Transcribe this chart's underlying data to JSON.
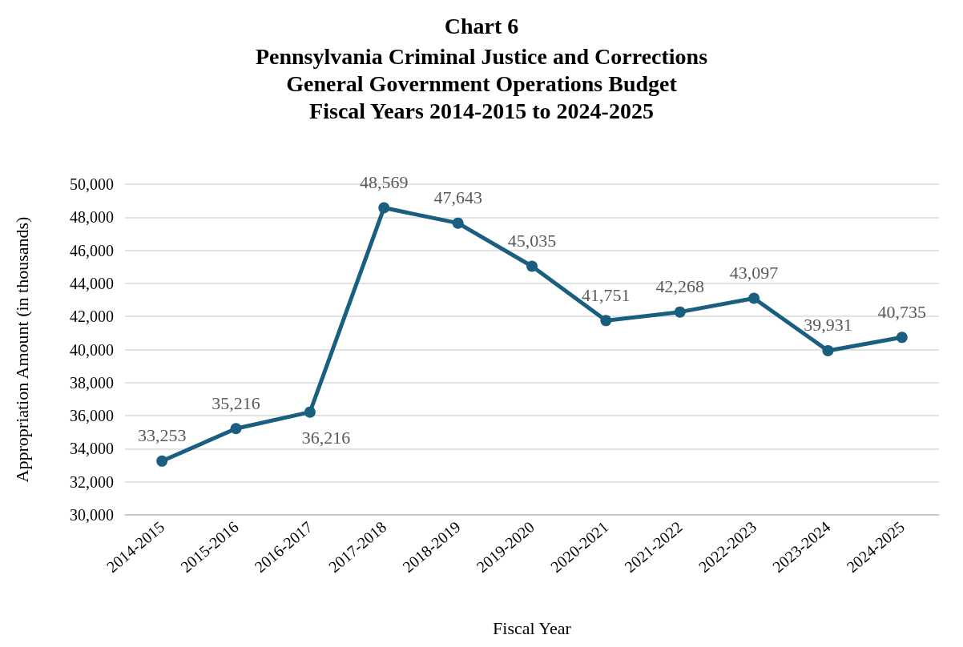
{
  "chart_data": {
    "type": "line",
    "title": "Chart 6",
    "subtitle": "Pennsylvania Criminal Justice and Corrections\nGeneral Government Operations Budget\nFiscal Years 2014-2015 to 2024-2025",
    "xlabel": "Fiscal Year",
    "ylabel": "Appropriation Amount (in thousands)",
    "categories": [
      "2014-2015",
      "2015-2016",
      "2016-2017",
      "2017-2018",
      "2018-2019",
      "2019-2020",
      "2020-2021",
      "2021-2022",
      "2022-2023",
      "2023-2024",
      "2024-2025"
    ],
    "series": [
      {
        "color": "#1a5f80",
        "values": [
          33253,
          35216,
          36216,
          48569,
          47643,
          45035,
          41751,
          42268,
          43097,
          39931,
          40735
        ],
        "value_labels": [
          "33,253",
          "35,216",
          "36,216",
          "48,569",
          "47,643",
          "45,035",
          "41,751",
          "42,268",
          "43,097",
          "39,931",
          "40,735"
        ]
      }
    ],
    "ylim": [
      30000,
      50000
    ],
    "yticks": [
      {
        "value": 30000,
        "label": "30,000"
      },
      {
        "value": 32000,
        "label": "32,000"
      },
      {
        "value": 34000,
        "label": "34,000"
      },
      {
        "value": 36000,
        "label": "36,000"
      },
      {
        "value": 38000,
        "label": "38,000"
      },
      {
        "value": 40000,
        "label": "40,000"
      },
      {
        "value": 42000,
        "label": "42,000"
      },
      {
        "value": 44000,
        "label": "44,000"
      },
      {
        "value": 46000,
        "label": "46,000"
      },
      {
        "value": 48000,
        "label": "48,000"
      },
      {
        "value": 50000,
        "label": "50,000"
      }
    ],
    "grid": "y",
    "marker": "circle",
    "line_style": "solid"
  }
}
